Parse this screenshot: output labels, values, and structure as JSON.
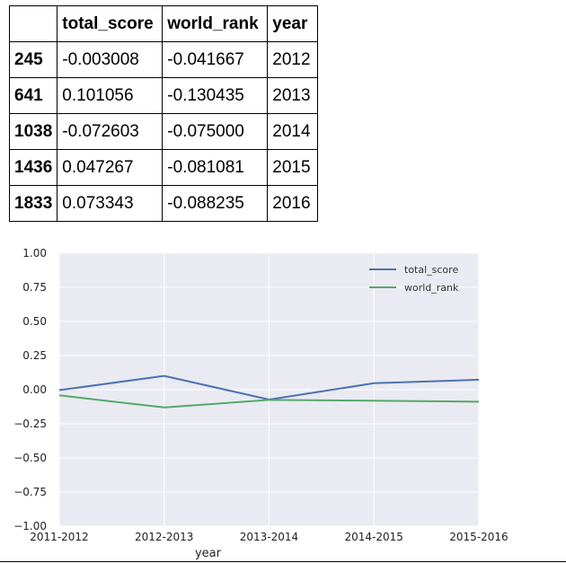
{
  "table": {
    "header": [
      "",
      "total_score",
      "world_rank",
      "year"
    ],
    "rows": [
      {
        "index": "245",
        "total_score": "-0.003008",
        "world_rank": "-0.041667",
        "year": "2012"
      },
      {
        "index": "641",
        "total_score": "0.101056",
        "world_rank": "-0.130435",
        "year": "2013"
      },
      {
        "index": "1038",
        "total_score": "-0.072603",
        "world_rank": "-0.075000",
        "year": "2014"
      },
      {
        "index": "1436",
        "total_score": "0.047267",
        "world_rank": "-0.081081",
        "year": "2015"
      },
      {
        "index": "1833",
        "total_score": "0.073343",
        "world_rank": "-0.088235",
        "year": "2016"
      }
    ]
  },
  "chart_data": {
    "type": "line",
    "x": [
      "2011-2012",
      "2012-2013",
      "2013-2014",
      "2014-2015",
      "2015-2016"
    ],
    "series": [
      {
        "name": "total_score",
        "values": [
          -0.003008,
          0.101056,
          -0.072603,
          0.047267,
          0.073343
        ],
        "color": "#4c72b0"
      },
      {
        "name": "world_rank",
        "values": [
          -0.041667,
          -0.130435,
          -0.075,
          -0.081081,
          -0.088235
        ],
        "color": "#55a868"
      }
    ],
    "xlabel": "year",
    "ylabel": "",
    "ylim": [
      -1.0,
      1.0
    ],
    "yticks": [
      "1.00",
      "0.75",
      "0.50",
      "0.25",
      "0.00",
      "−0.25",
      "−0.50",
      "−0.75",
      "−1.00"
    ],
    "grid": true,
    "legend_position": "top-right",
    "plot_background": "#eaeaf2",
    "grid_color": "#ffffff"
  }
}
